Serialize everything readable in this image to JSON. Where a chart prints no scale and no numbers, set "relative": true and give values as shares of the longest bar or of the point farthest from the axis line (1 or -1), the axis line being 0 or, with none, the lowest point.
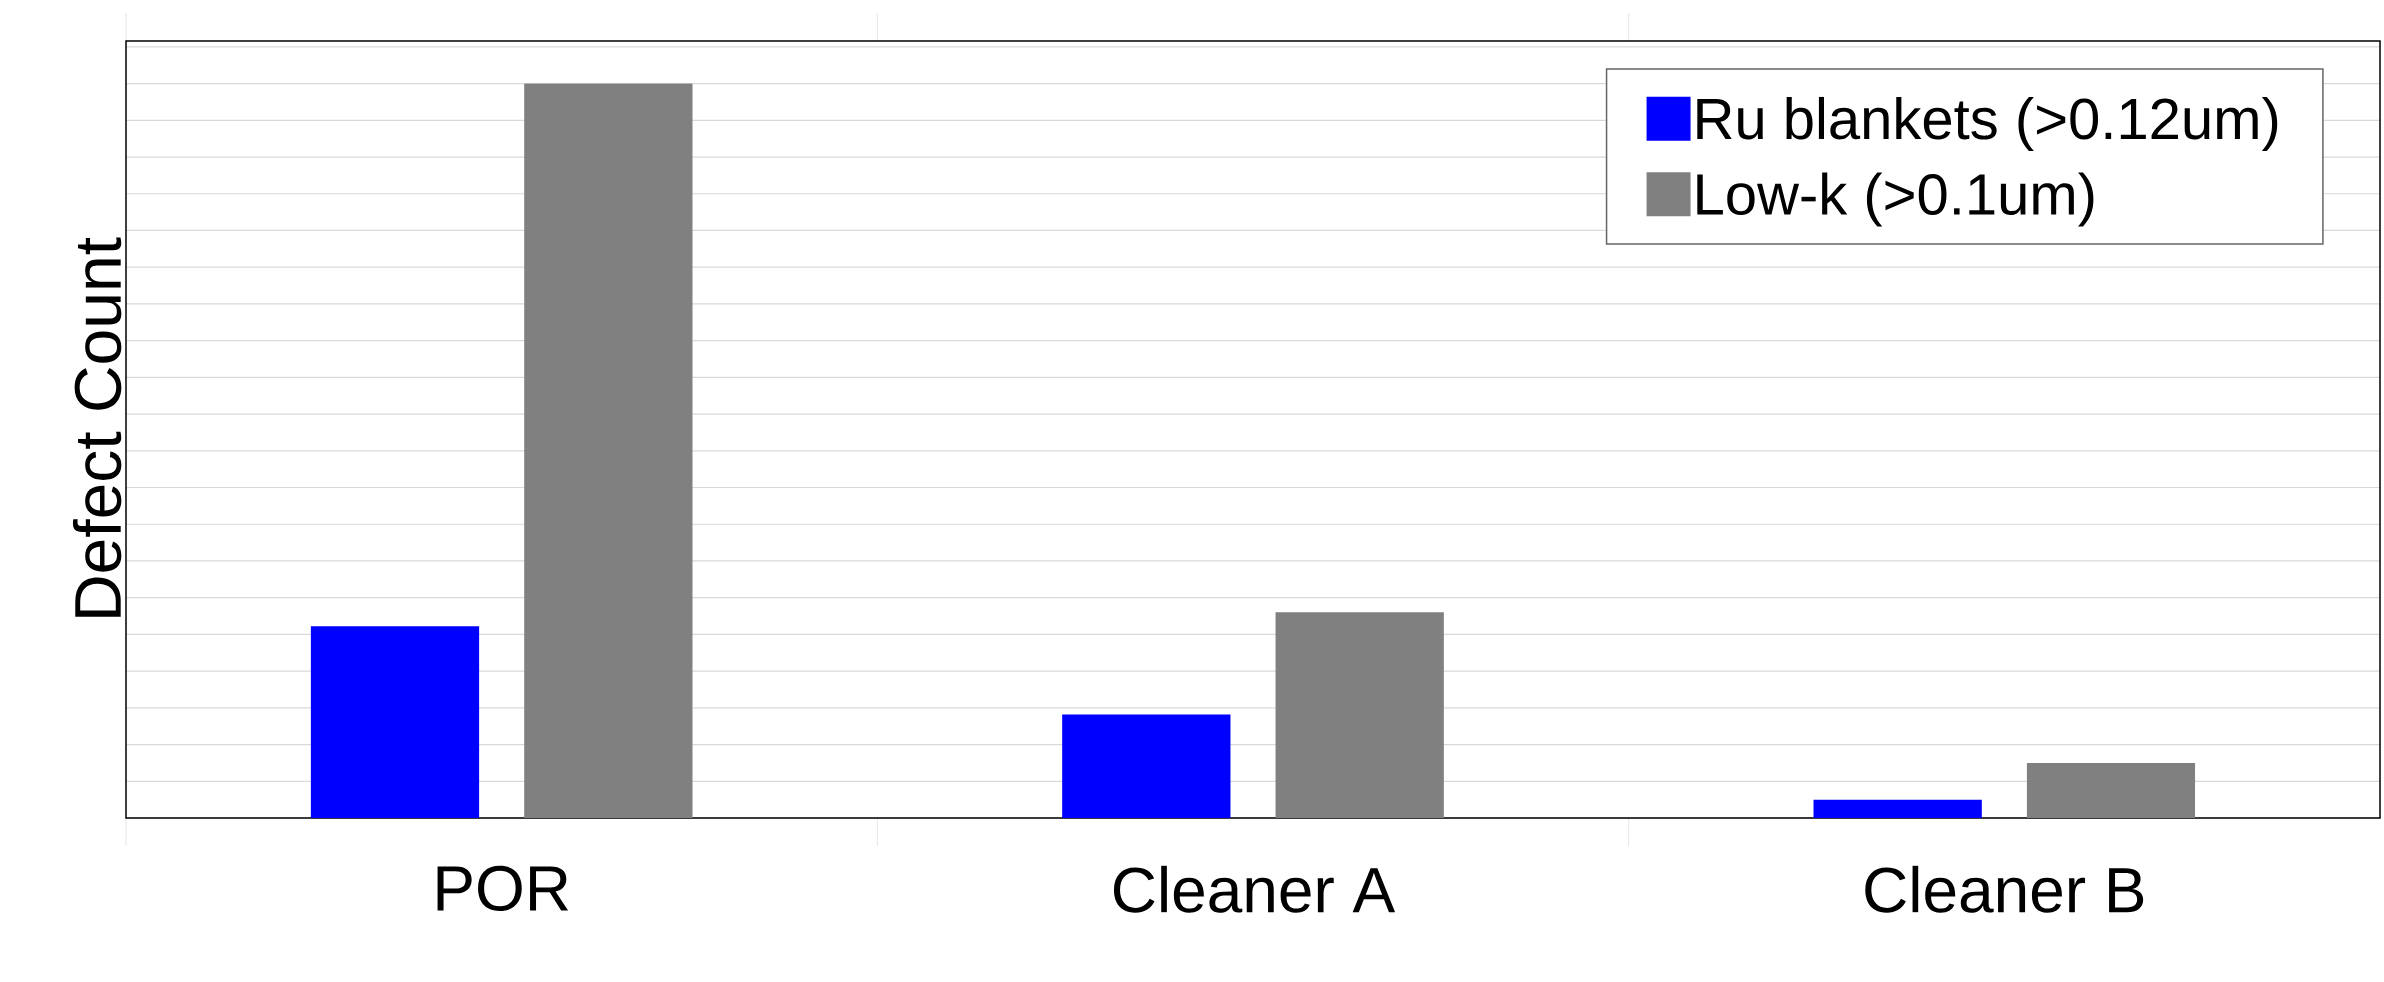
{
  "chart_data": {
    "type": "bar",
    "ylabel": "Defect Count",
    "categories": [
      "POR",
      "Cleaner A",
      "Cleaner B"
    ],
    "relative": true,
    "grid": "y",
    "legend": "top right",
    "series": [
      {
        "name": "Ru blankets (>0.12um)",
        "color": "#0000ff",
        "values": [
          0.261,
          0.141,
          0.025
        ]
      },
      {
        "name": "Low-k (>0.1um)",
        "color": "#808080",
        "values": [
          1,
          0.28,
          0.075
        ]
      }
    ]
  }
}
